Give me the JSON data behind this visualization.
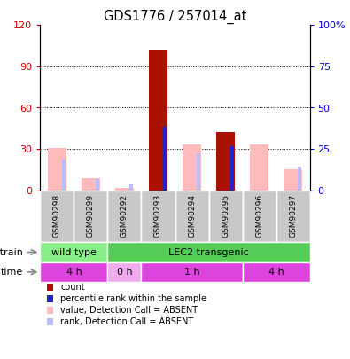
{
  "title": "GDS1776 / 257014_at",
  "samples": [
    "GSM90298",
    "GSM90299",
    "GSM90292",
    "GSM90293",
    "GSM90294",
    "GSM90295",
    "GSM90296",
    "GSM90297"
  ],
  "red_bars": [
    0,
    0,
    0,
    102,
    0,
    42,
    0,
    0
  ],
  "pink_bars": [
    31,
    9,
    2,
    0,
    33,
    0,
    33,
    15
  ],
  "blue_bars": [
    0,
    0,
    0,
    46,
    0,
    32,
    0,
    0
  ],
  "light_blue_bars": [
    23,
    8,
    4,
    0,
    27,
    0,
    0,
    17
  ],
  "ylim_left": [
    0,
    120
  ],
  "ylim_right": [
    0,
    100
  ],
  "yticks_left": [
    0,
    30,
    60,
    90,
    120
  ],
  "yticks_right": [
    0,
    25,
    50,
    75,
    100
  ],
  "ytick_labels_right": [
    "0",
    "25",
    "50",
    "75",
    "100%"
  ],
  "hlines": [
    30,
    60,
    90
  ],
  "strain_groups": [
    {
      "label": "wild type",
      "start": 0,
      "end": 2,
      "color": "#88ee88"
    },
    {
      "label": "LEC2 transgenic",
      "start": 2,
      "end": 8,
      "color": "#55cc55"
    }
  ],
  "time_groups": [
    {
      "label": "4 h",
      "start": 0,
      "end": 2,
      "color": "#dd44dd"
    },
    {
      "label": "0 h",
      "start": 2,
      "end": 3,
      "color": "#f0aaee"
    },
    {
      "label": "1 h",
      "start": 3,
      "end": 6,
      "color": "#dd44dd"
    },
    {
      "label": "4 h",
      "start": 6,
      "end": 8,
      "color": "#dd44dd"
    }
  ],
  "red_color": "#aa1100",
  "pink_color": "#ffbbbb",
  "blue_color": "#2222cc",
  "light_blue_color": "#bbbbff",
  "bg_color": "#ffffff",
  "left_tick_color": "#cc0000",
  "right_tick_color": "#0000cc",
  "gray_bg": "#c8c8c8",
  "legend_items": [
    {
      "color": "#aa1100",
      "label": "count"
    },
    {
      "color": "#2222cc",
      "label": "percentile rank within the sample"
    },
    {
      "color": "#ffbbbb",
      "label": "value, Detection Call = ABSENT"
    },
    {
      "color": "#bbbbff",
      "label": "rank, Detection Call = ABSENT"
    }
  ]
}
